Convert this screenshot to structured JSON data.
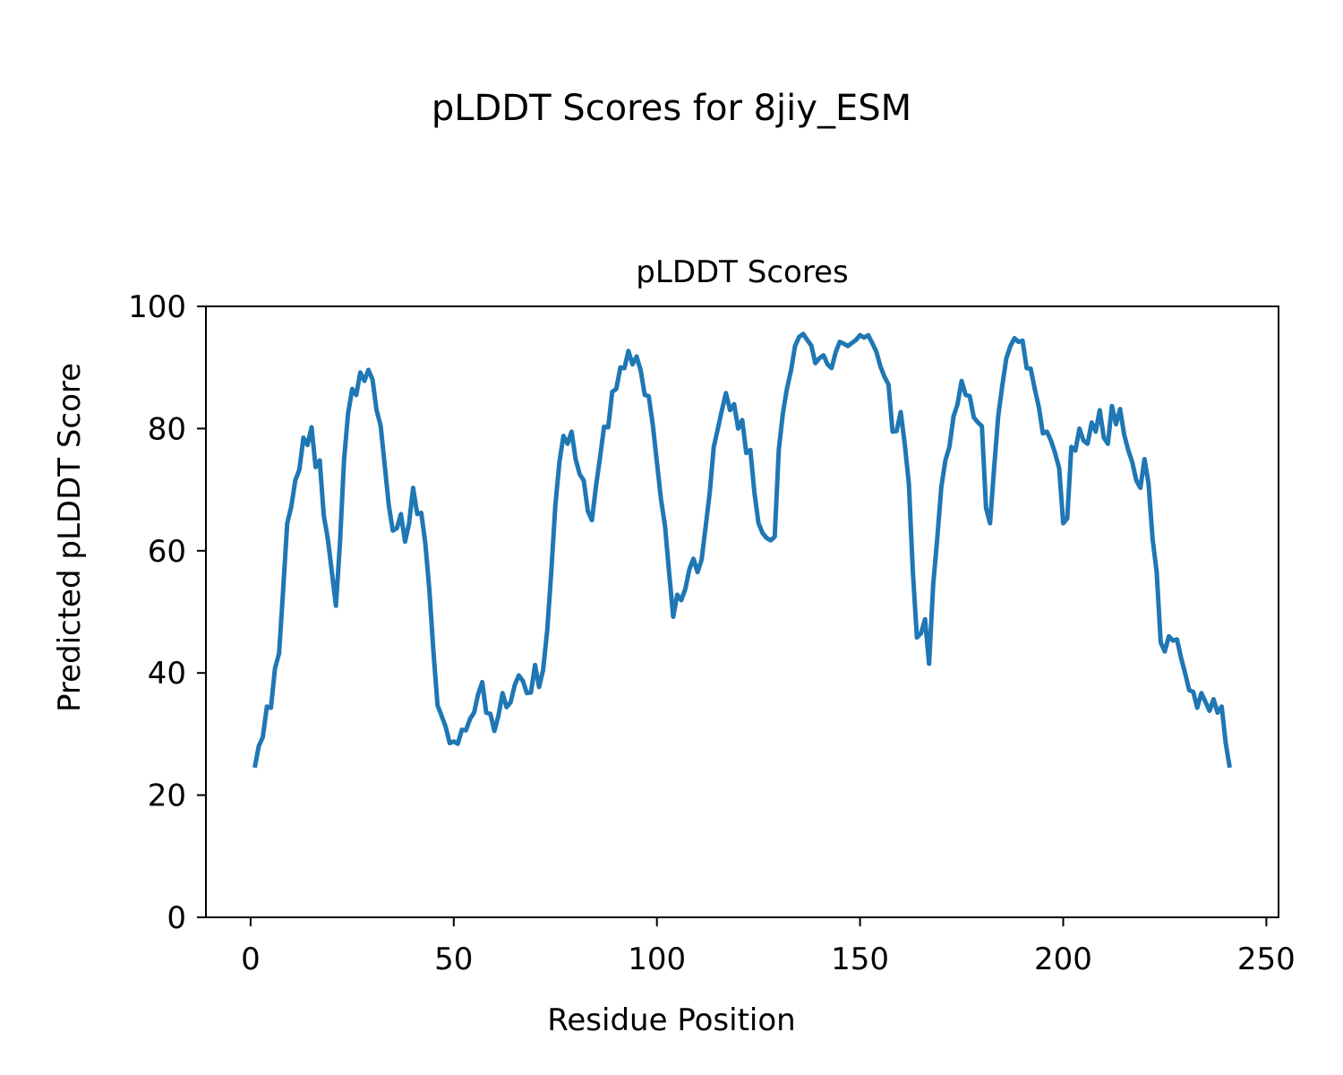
{
  "figure_title": "pLDDT Scores for 8jiy_ESM",
  "chart_data": {
    "type": "line",
    "title": "pLDDT Scores",
    "xlabel": "Residue Position",
    "ylabel": "Predicted pLDDT Score",
    "xlim": [
      -11,
      253
    ],
    "ylim": [
      0,
      100
    ],
    "xticks": [
      0,
      50,
      100,
      150,
      200,
      250
    ],
    "yticks": [
      0,
      20,
      40,
      60,
      80,
      100
    ],
    "grid": false,
    "color": "#1f77b4",
    "x_start": 1,
    "x_step": 1,
    "values": [
      24.5,
      28.0,
      29.5,
      34.5,
      34.3,
      40.7,
      43.2,
      53.5,
      64.5,
      67.2,
      71.5,
      73.3,
      78.5,
      77.3,
      80.2,
      73.7,
      74.8,
      65.8,
      62.0,
      56.5,
      51.0,
      61.5,
      75.0,
      82.5,
      86.5,
      85.5,
      89.2,
      87.8,
      89.6,
      88.0,
      83.0,
      80.5,
      74.0,
      67.5,
      63.3,
      63.7,
      66.0,
      61.5,
      64.5,
      70.3,
      66.0,
      66.2,
      61.3,
      53.5,
      43.5,
      34.7,
      33.0,
      31.2,
      28.5,
      28.8,
      28.4,
      30.7,
      30.6,
      32.5,
      33.5,
      36.5,
      38.5,
      33.5,
      33.3,
      30.5,
      33.0,
      36.7,
      34.4,
      35.2,
      38.0,
      39.6,
      38.7,
      36.7,
      36.8,
      41.3,
      37.7,
      40.5,
      47.0,
      56.5,
      67.5,
      74.5,
      78.8,
      77.5,
      79.5,
      75.0,
      72.5,
      71.5,
      66.5,
      65.0,
      70.5,
      75.3,
      80.3,
      80.2,
      86.0,
      86.5,
      90.0,
      89.9,
      92.7,
      90.5,
      91.8,
      89.5,
      85.5,
      85.3,
      80.5,
      74.5,
      68.5,
      64.0,
      56.5,
      49.2,
      52.8,
      51.9,
      53.8,
      57.0,
      58.7,
      56.5,
      58.5,
      64.0,
      69.5,
      77.0,
      80.0,
      83.0,
      85.8,
      83.0,
      84.0,
      80.0,
      81.4,
      76.0,
      76.5,
      69.5,
      64.5,
      62.9,
      62.1,
      61.7,
      62.3,
      76.5,
      82.5,
      86.5,
      89.5,
      93.5,
      95.0,
      95.5,
      94.5,
      93.6,
      90.7,
      91.5,
      92.0,
      90.5,
      89.9,
      92.5,
      94.2,
      93.9,
      93.5,
      94.0,
      94.5,
      95.3,
      94.9,
      95.3,
      94.0,
      92.6,
      90.2,
      88.5,
      87.2,
      79.5,
      79.6,
      82.7,
      77.5,
      71.0,
      56.5,
      45.8,
      46.5,
      48.8,
      41.5,
      54.5,
      62.0,
      70.5,
      74.8,
      77.0,
      82.0,
      84.0,
      87.8,
      85.5,
      85.3,
      81.8,
      81.0,
      80.4,
      67.0,
      64.5,
      73.5,
      82.0,
      87.0,
      91.5,
      93.5,
      94.8,
      94.2,
      94.4,
      89.9,
      89.8,
      86.5,
      83.5,
      79.2,
      79.5,
      78.0,
      76.0,
      73.5,
      64.5,
      65.3,
      77.0,
      76.4,
      80.0,
      78.0,
      77.5,
      81.0,
      79.5,
      83.0,
      78.5,
      77.5,
      83.7,
      80.7,
      83.2,
      79.0,
      76.5,
      74.5,
      71.5,
      70.3,
      75.0,
      71.0,
      62.0,
      56.5,
      45.0,
      43.5,
      46.0,
      45.3,
      45.5,
      42.5,
      40.0,
      37.2,
      36.9,
      34.3,
      36.7,
      35.3,
      33.8,
      35.7,
      33.5,
      34.5,
      28.5,
      24.5
    ]
  }
}
